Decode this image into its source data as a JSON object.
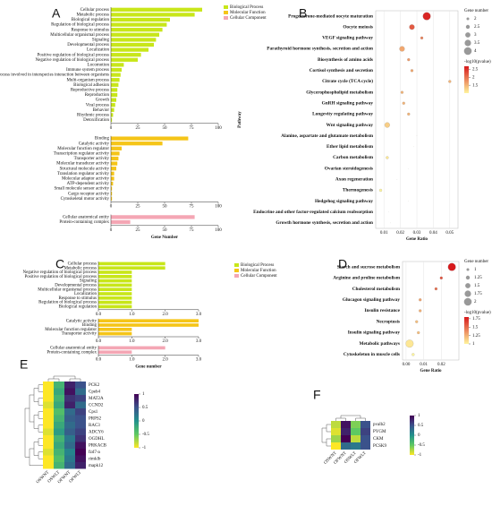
{
  "chart_data": [
    {
      "type": "grouped-barh",
      "label": "A",
      "xlabel": "Gene Number",
      "xlim": [
        0,
        100
      ],
      "xticks": [
        0,
        25,
        50,
        75,
        100
      ],
      "groups": [
        {
          "name": "Biological Process",
          "color": "#c8e619",
          "categories": [
            "Cellular process",
            "Metabolic process",
            "Biological regulation",
            "Regulation of biological process",
            "Response to stimulus",
            "Multicellular organismal process",
            "Signaling",
            "Developmental process",
            "Localization",
            "Positive regulation of biological process",
            "Negative regulation of biological process",
            "Locomotion",
            "Immune system process",
            "Biological process involved in interspecies interaction between organisms",
            "Multi-organism process",
            "Biological adhesion",
            "Reproductive process",
            "Reproduction",
            "Growth",
            "Viral process",
            "Behavior",
            "Rhythmic process",
            "Detoxification"
          ],
          "values": [
            85,
            78,
            55,
            52,
            48,
            45,
            42,
            40,
            35,
            28,
            25,
            12,
            10,
            9,
            8,
            7,
            6,
            6,
            5,
            4,
            3,
            2,
            1
          ]
        },
        {
          "name": "Molecular Function",
          "color": "#f5c518",
          "categories": [
            "Binding",
            "Catalytic activity",
            "Molecular function regulator",
            "Transcription regulator activity",
            "Transporter activity",
            "Molecular transducer activity",
            "Structural molecule activity",
            "Translation regulator activity",
            "Molecular adaptor activity",
            "ATP-dependent activity",
            "Small molecule sensor activity",
            "Cargo receptor activity",
            "Cytoskeletal motor activity"
          ],
          "values": [
            72,
            48,
            10,
            8,
            7,
            6,
            5,
            3,
            3,
            2,
            1,
            1,
            1
          ]
        },
        {
          "name": "Cellular Component",
          "color": "#f4a6b4",
          "categories": [
            "Cellular anatomical entity",
            "Protein-containing complex"
          ],
          "values": [
            78,
            18
          ]
        }
      ]
    },
    {
      "type": "dot",
      "label": "B",
      "xlabel": "Gene Ratio",
      "ylabel": "Pathway",
      "xlim": [
        0.005,
        0.055
      ],
      "xticks": [
        0.01,
        0.02,
        0.03,
        0.04,
        0.05
      ],
      "grid": true,
      "categories": [
        "Progesterone-mediated oocyte maturation",
        "Oocyte meiosis",
        "VEGF signaling pathway",
        "Parathyroid hormone synthesis, secretion and action",
        "Biosynthesis of amino acids",
        "Cortisol synthesis and secretion",
        "Citrate cycle (TCA cycle)",
        "Glycerophospholipid metabolism",
        "GnRH signaling pathway",
        "Longevity regulating pathway",
        "Wnt signaling pathway",
        "Alanine, aspartate and glutamate metabolism",
        "Ether lipid metabolism",
        "Carbon metabolism",
        "Ovarian steroidogenesis",
        "Axon regeneration",
        "Thermogenesis",
        "Hedgehog signaling pathway",
        "Endocrine and other factor-regulated calcium reabsorption",
        "Growth hormone synthesis, secretion and action"
      ],
      "gene_ratio": [
        0.036,
        0.027,
        0.033,
        0.021,
        0.025,
        0.027,
        0.05,
        0.021,
        0.022,
        0.025,
        0.012,
        0.03,
        0.028,
        0.012,
        0.025,
        0.018,
        0.008,
        0.025,
        0.013,
        0.014
      ],
      "gene_number": [
        4,
        3,
        2,
        3,
        2,
        2,
        2,
        2,
        2,
        2,
        3,
        1,
        1,
        2,
        1,
        1,
        2,
        1,
        1,
        1
      ],
      "neg_log10_p": [
        2.6,
        2.2,
        1.9,
        1.6,
        1.7,
        1.6,
        1.5,
        1.5,
        1.5,
        1.5,
        1.3,
        1.1,
        1.1,
        1.1,
        1.05,
        1.05,
        1.0,
        1.0,
        1.0,
        1.0
      ],
      "size_title": "Gene number",
      "size_ticks": [
        2,
        2.5,
        3,
        3.5,
        4
      ],
      "color_title": "-log10(pvalue)",
      "clim": [
        1,
        2.7
      ],
      "color_ticks": [
        1.5,
        2,
        2.5
      ],
      "colors": [
        "#fff59d",
        "#d7191c"
      ]
    },
    {
      "type": "grouped-barh",
      "label": "C",
      "xlabel": "Gene number",
      "xlim": [
        0,
        3
      ],
      "xticks": [
        {
          "value": 0,
          "label": "0.0"
        },
        {
          "value": 1,
          "label": "1.0"
        },
        {
          "value": 2,
          "label": "2.0"
        },
        {
          "value": 3,
          "label": "3.0"
        }
      ],
      "groups": [
        {
          "name": "Biological Process",
          "color": "#c8e619",
          "categories": [
            "Cellular process",
            "Metabolic process",
            "Negative regulation of biological process",
            "Positive regulation of biological process",
            "Signaling",
            "Developmental process",
            "Multicellular organismal process",
            "Localization",
            "Response to stimulus",
            "Regulation of biological process",
            "Biological regulation"
          ],
          "values": [
            2,
            2,
            1,
            1,
            1,
            1,
            1,
            1,
            1,
            1,
            1
          ]
        },
        {
          "name": "Molecular Function",
          "color": "#f5c518",
          "categories": [
            "Catalytic activity",
            "Binding",
            "Molecular function regulator",
            "Transporter activity"
          ],
          "values": [
            3,
            3,
            1,
            1
          ]
        },
        {
          "name": "Cellular Component",
          "color": "#f4a6b4",
          "categories": [
            "Cellular anatomical entity",
            "Protein-containing complex"
          ],
          "values": [
            2,
            1
          ]
        }
      ]
    },
    {
      "type": "dot",
      "label": "D",
      "xlabel": "Gene Ratio",
      "xlim": [
        -0.002,
        0.03
      ],
      "xticks": [
        {
          "value": 0,
          "label": "0.00"
        },
        0.01,
        0.02
      ],
      "grid": true,
      "categories": [
        "Starch and sucrose metabolism",
        "Arginine and proline metabolism",
        "Cholesterol metabolism",
        "Glucagon signaling pathway",
        "Insulin resistance",
        "Necroptosis",
        "Insulin signaling pathway",
        "Metabolic pathways",
        "Cytoskeleton in muscle cells"
      ],
      "gene_ratio": [
        0.026,
        0.02,
        0.017,
        0.008,
        0.008,
        0.006,
        0.007,
        0.002,
        0.004
      ],
      "gene_number": [
        2,
        1,
        1,
        1,
        1,
        1,
        1,
        2,
        1
      ],
      "neg_log10_p": [
        1.8,
        1.6,
        1.5,
        1.3,
        1.25,
        1.2,
        1.2,
        1.05,
        1.0
      ],
      "size_title": "Gene number",
      "size_ticks": [
        1,
        1.25,
        1.5,
        1.75,
        2
      ],
      "color_title": "-log10(pvalue)",
      "clim": [
        1,
        1.8
      ],
      "color_ticks": [
        1,
        1.25,
        1.5,
        1.75
      ],
      "colors": [
        "#fff59d",
        "#d7191c"
      ]
    },
    {
      "type": "heatmap",
      "label": "E",
      "rows": [
        "PCK2",
        "Cpeb4",
        "MAT2A",
        "CCND2",
        "Cps1",
        "PRPS2",
        "RAC3",
        "ADCY6",
        "OGDHL",
        "PRKACB",
        "fzd7-a",
        "rimklb",
        "mapk12"
      ],
      "columns": [
        "OSWNT",
        "OSWLT",
        "OFWNT",
        "OFWLT"
      ],
      "values": [
        [
          -1,
          -0.3,
          0.8,
          0.5
        ],
        [
          -1,
          -0.2,
          0.9,
          0.3
        ],
        [
          -1,
          -0.3,
          0.7,
          0.6
        ],
        [
          -0.9,
          -0.2,
          0.8,
          0.3
        ],
        [
          -1,
          -0.4,
          0.3,
          0.6
        ],
        [
          -1,
          -0.3,
          0.4,
          0.5
        ],
        [
          -1,
          -0.2,
          0.3,
          0.5
        ],
        [
          -0.9,
          -0.1,
          0.4,
          0.6
        ],
        [
          -1,
          -0.3,
          0.2,
          0.7
        ],
        [
          -1,
          -0.2,
          0.3,
          0.9
        ],
        [
          -0.9,
          -0.3,
          0.1,
          1
        ],
        [
          -1,
          -0.4,
          0.2,
          0.9
        ],
        [
          -1,
          -0.3,
          0.3,
          0.8
        ]
      ],
      "clim": [
        -1,
        1
      ],
      "cticks": [
        1,
        0.5,
        0,
        -0.5,
        -1
      ],
      "colors": [
        "#fde725",
        "#5ec962",
        "#21918c",
        "#3b528b",
        "#440154"
      ]
    },
    {
      "type": "heatmap",
      "label": "F",
      "rows": [
        "pvalb2",
        "PYGM",
        "CKM",
        "PCSK9"
      ],
      "columns": [
        "OSWNT",
        "OFWNT",
        "OSWLT",
        "OFWLT"
      ],
      "values": [
        [
          -0.8,
          0.9,
          -0.6,
          0.5
        ],
        [
          -0.9,
          0.8,
          -0.5,
          0.6
        ],
        [
          -0.7,
          1,
          -0.8,
          0.5
        ],
        [
          -1,
          0.3,
          0.2,
          0.5
        ]
      ],
      "clim": [
        -1,
        1
      ],
      "cticks": [
        1,
        0.5,
        0,
        -0.5,
        -1
      ],
      "colors": [
        "#fde725",
        "#5ec962",
        "#21918c",
        "#3b528b",
        "#440154"
      ]
    }
  ]
}
